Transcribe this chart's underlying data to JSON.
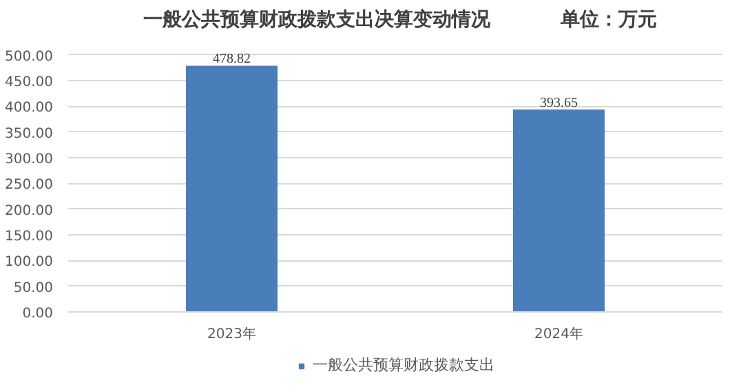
{
  "chart_data": {
    "type": "bar",
    "title": "一般公共预算财政拨款支出决算变动情况",
    "annotations": [
      "单位：万元"
    ],
    "categories": [
      "2023年",
      "2024年"
    ],
    "series": [
      {
        "name": "一般公共预算财政拨款支出",
        "color": "#4a7ebb",
        "values": [
          478.82,
          393.65
        ]
      }
    ],
    "ylim": [
      0,
      500
    ],
    "yticks": [
      {
        "value": 0,
        "label": "0.00"
      },
      {
        "value": 50,
        "label": "50.00"
      },
      {
        "value": 100,
        "label": "100.00"
      },
      {
        "value": 150,
        "label": "150.00"
      },
      {
        "value": 200,
        "label": "200.00"
      },
      {
        "value": 250,
        "label": "250.00"
      },
      {
        "value": 300,
        "label": "300.00"
      },
      {
        "value": 350,
        "label": "350.00"
      },
      {
        "value": 400,
        "label": "400.00"
      },
      {
        "value": 450,
        "label": "450.00"
      },
      {
        "value": 500,
        "label": "500.00"
      }
    ],
    "grid": "y",
    "legend": "bottom",
    "data_labels": true
  }
}
